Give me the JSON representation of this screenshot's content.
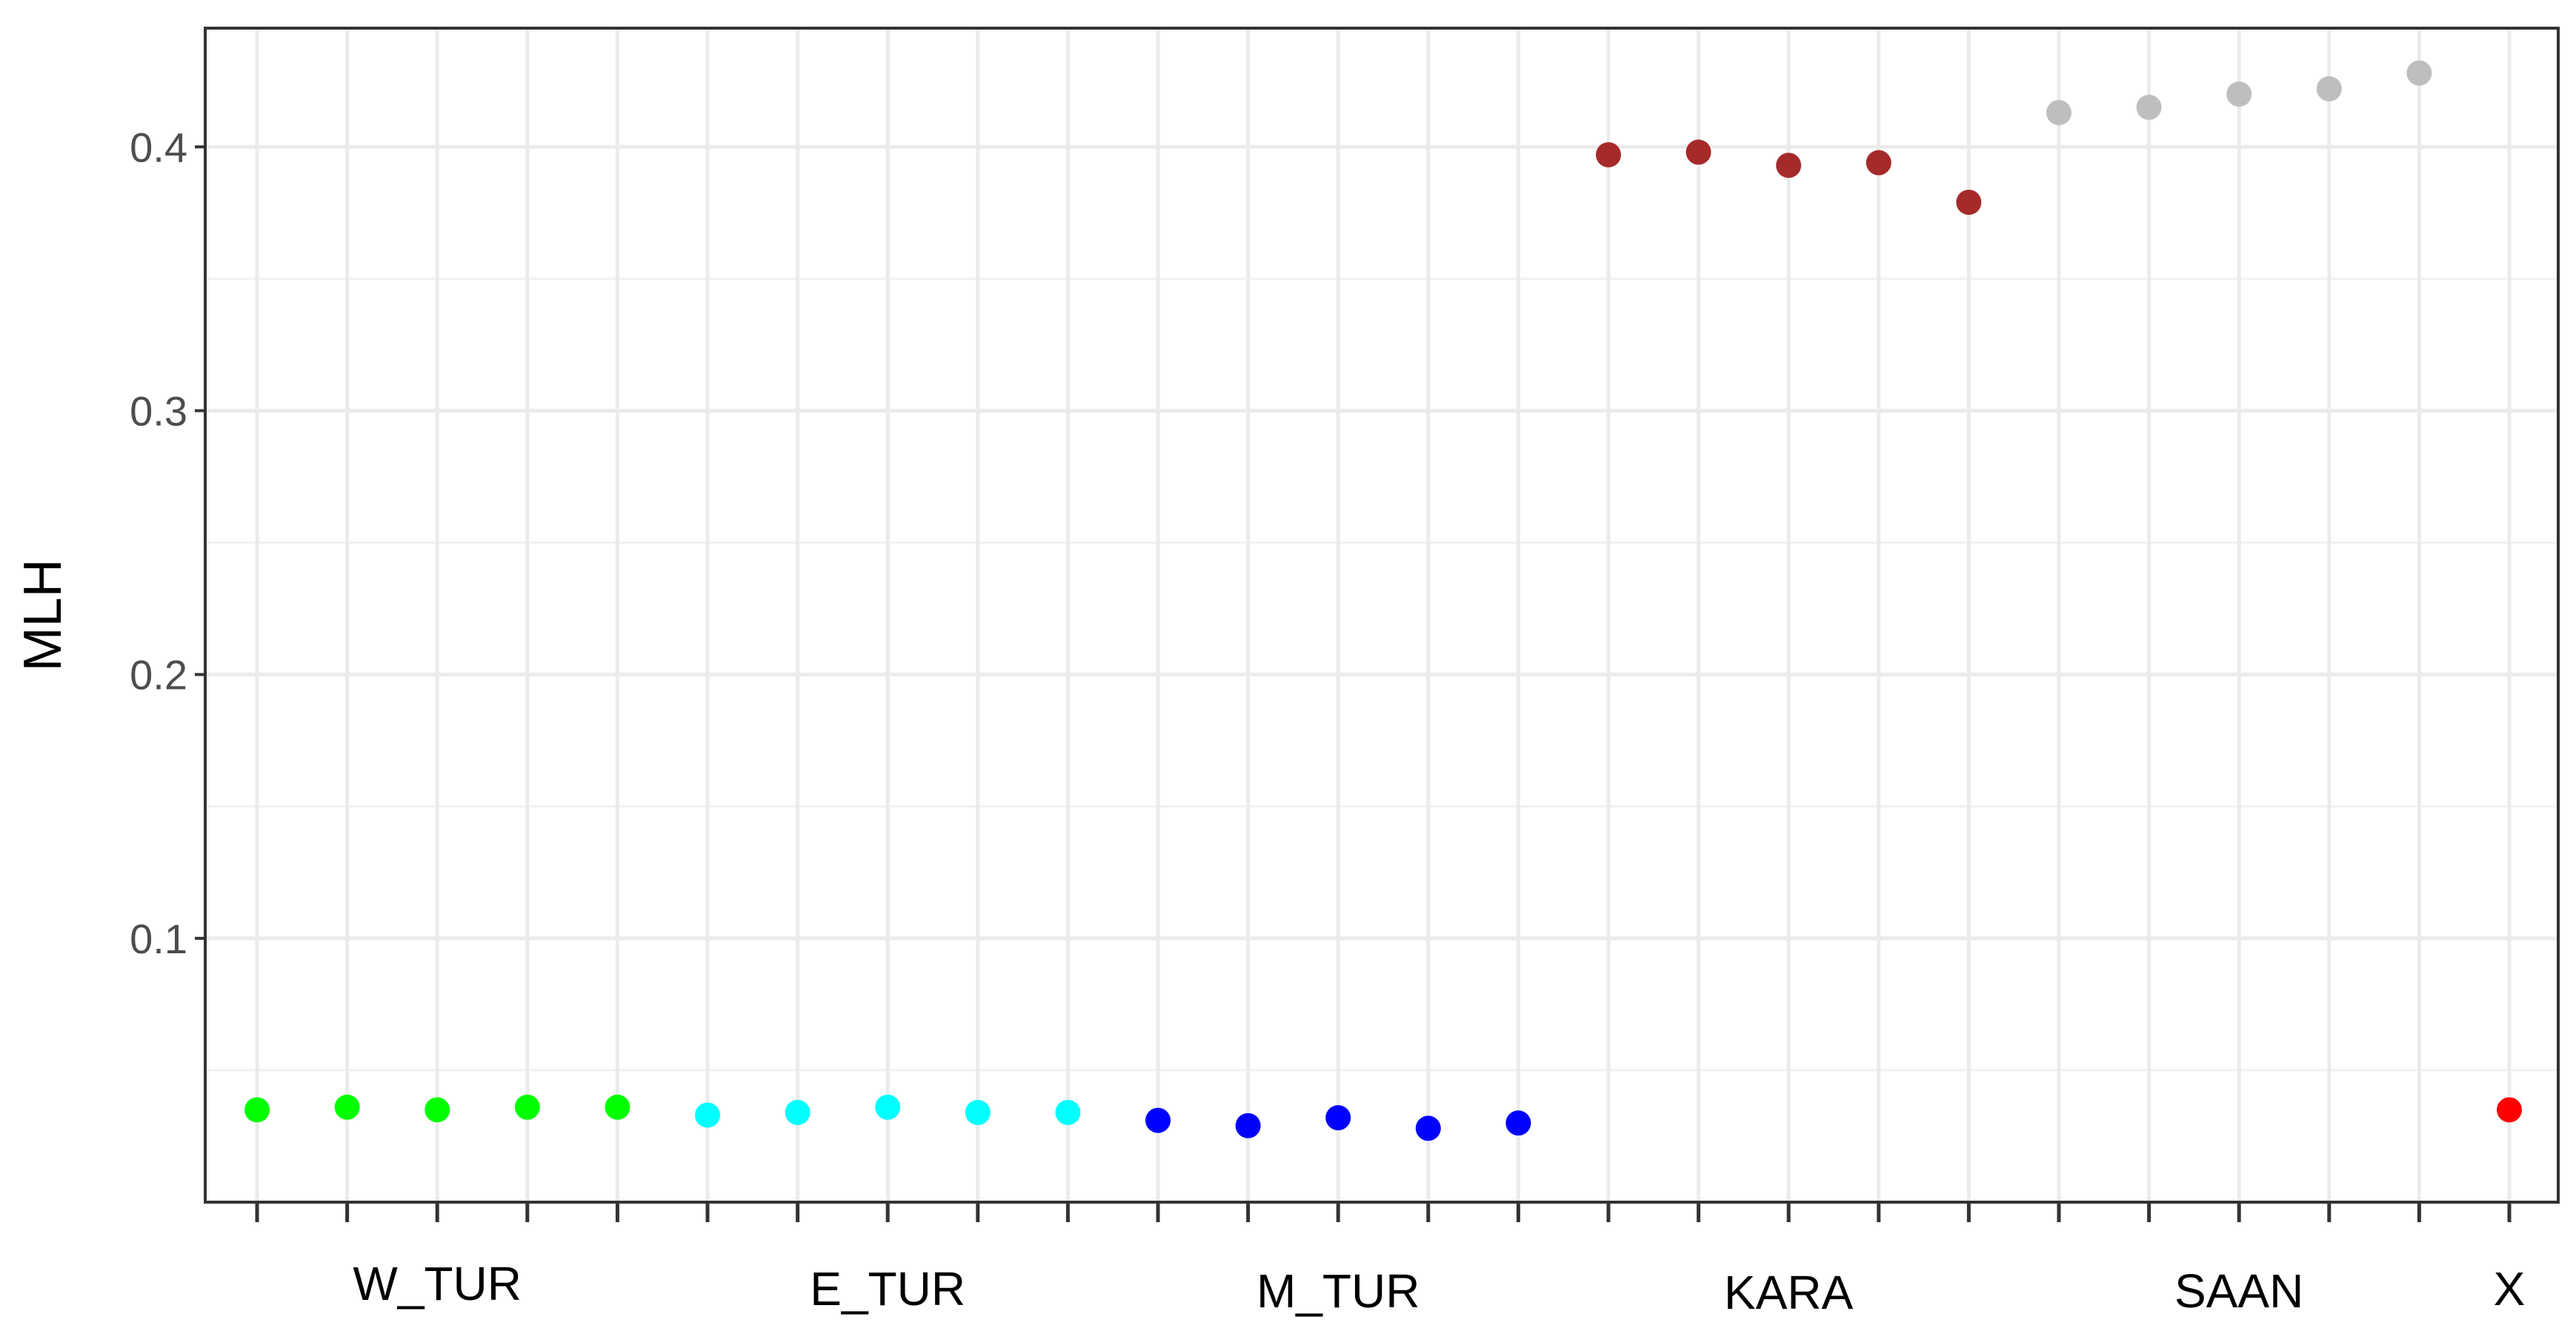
{
  "chart_data": {
    "type": "scatter",
    "ylabel": "MLH",
    "xlabel": "",
    "ylim": [
      0,
      0.445
    ],
    "y_ticks": [
      0.1,
      0.2,
      0.3,
      0.4
    ],
    "y_tick_labels": [
      "0.1",
      "0.2",
      "0.3",
      "0.4"
    ],
    "grid": true,
    "x_positions": 26,
    "group_labels": [
      "W_TUR",
      "E_TUR",
      "M_TUR",
      "KARA",
      "SAAN",
      "X"
    ],
    "series": [
      {
        "group": "W_TUR",
        "color": "#00ff00",
        "x": [
          1,
          2,
          3,
          4,
          5
        ],
        "values": [
          0.035,
          0.036,
          0.035,
          0.036,
          0.036
        ]
      },
      {
        "group": "E_TUR",
        "color": "#00ffff",
        "x": [
          6,
          7,
          8,
          9,
          10
        ],
        "values": [
          0.033,
          0.034,
          0.036,
          0.034,
          0.034
        ]
      },
      {
        "group": "M_TUR",
        "color": "#0000ff",
        "x": [
          11,
          12,
          13,
          14,
          15
        ],
        "values": [
          0.031,
          0.029,
          0.032,
          0.028,
          0.03
        ]
      },
      {
        "group": "KARA",
        "color": "#a52a2a",
        "x": [
          16,
          17,
          18,
          19,
          20
        ],
        "values": [
          0.397,
          0.398,
          0.393,
          0.394,
          0.379
        ]
      },
      {
        "group": "SAAN",
        "color": "#bebebe",
        "x": [
          21,
          22,
          23,
          24,
          25
        ],
        "values": [
          0.413,
          0.415,
          0.42,
          0.422,
          0.428
        ]
      },
      {
        "group": "X",
        "color": "#ff0000",
        "x": [
          26
        ],
        "values": [
          0.035
        ]
      }
    ]
  }
}
